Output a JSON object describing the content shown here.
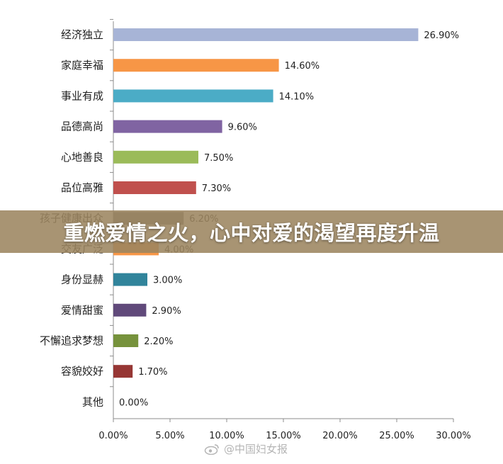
{
  "banner": {
    "title": "重燃爱情之火，心中对爱的渴望再度升温"
  },
  "watermark": {
    "text": "@中国妇女报",
    "icon": "weibo-icon"
  },
  "chart_data": {
    "type": "bar",
    "orientation": "horizontal",
    "categories": [
      "经济独立",
      "家庭幸福",
      "事业有成",
      "品德高尚",
      "心地善良",
      "品位高雅",
      "孩子健康出众",
      "交友广泛",
      "身份显赫",
      "爱情甜蜜",
      "不懈追求梦想",
      "容貌姣好",
      "其他"
    ],
    "values": [
      26.9,
      14.6,
      14.1,
      9.6,
      7.5,
      7.3,
      6.2,
      4.0,
      3.0,
      2.9,
      2.2,
      1.7,
      0.0
    ],
    "value_labels": [
      "26.90%",
      "14.60%",
      "14.10%",
      "9.60%",
      "7.50%",
      "7.30%",
      "6.20%",
      "4.00%",
      "3.00%",
      "2.90%",
      "2.20%",
      "1.70%",
      "0.00%"
    ],
    "colors": [
      "#A7B4D6",
      "#F79646",
      "#4BACC6",
      "#8064A2",
      "#9BBB59",
      "#C0504D",
      "#7F7F7F",
      "#F79646",
      "#31849B",
      "#60497A",
      "#76923C",
      "#963634",
      "#A7B4D6"
    ],
    "xlim": [
      0,
      30
    ],
    "xticks": [
      0,
      5,
      10,
      15,
      20,
      25,
      30
    ],
    "xtick_labels": [
      "0.00%",
      "5.00%",
      "10.00%",
      "15.00%",
      "20.00%",
      "25.00%",
      "30.00%"
    ],
    "grid": false,
    "legend": "none",
    "title": "",
    "xlabel": "",
    "ylabel": ""
  }
}
